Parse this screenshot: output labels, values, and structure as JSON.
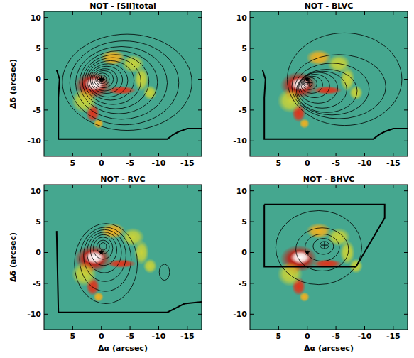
{
  "chart_data": [
    {
      "type": "contour",
      "title": "NOT - [SII]total",
      "y_label": "Δδ (arcsec)",
      "xlim": [
        10,
        -17.5
      ],
      "ylim": [
        -12.5,
        11
      ],
      "xticks": [
        5,
        0,
        -5,
        -10,
        -15
      ],
      "yticks": [
        -10,
        -5,
        0,
        5,
        10
      ],
      "image": [
        {
          "x": 1.5,
          "y": -1.0,
          "rx": 3.2,
          "ry": 2.2,
          "intensity": 0.7
        },
        {
          "x": 1.2,
          "y": -0.8,
          "rx": 1.8,
          "ry": 1.1,
          "intensity": 1
        },
        {
          "x": 2.6,
          "y": -2.6,
          "rx": 1.3,
          "ry": 1.2,
          "intensity": 0.8
        },
        {
          "x": -3.5,
          "y": -1.8,
          "rx": 2.6,
          "ry": 0.7,
          "intensity": 0.6
        },
        {
          "x": 1.5,
          "y": -5.5,
          "rx": 1.2,
          "ry": 1.5,
          "intensity": 0.6
        },
        {
          "x": 0.5,
          "y": -7.2,
          "rx": 0.9,
          "ry": 0.8,
          "intensity": 0.4
        },
        {
          "x": -2.0,
          "y": 3.5,
          "rx": 2.2,
          "ry": 1.3,
          "intensity": 0.35
        },
        {
          "x": -5.5,
          "y": 2.5,
          "rx": 2.0,
          "ry": 1.5,
          "intensity": 0.3
        },
        {
          "x": -7.0,
          "y": 0.0,
          "rx": 1.3,
          "ry": 2.0,
          "intensity": 0.3
        },
        {
          "x": -8.5,
          "y": -2.2,
          "rx": 1.2,
          "ry": 1.2,
          "intensity": 0.25
        },
        {
          "x": 3.0,
          "y": -3.5,
          "rx": 2.2,
          "ry": 2.0,
          "intensity": 0.3
        }
      ],
      "contours": [
        {
          "cx": 0,
          "cy": 0,
          "rx": 0.4,
          "ry": 0.4
        },
        {
          "cx": -0.1,
          "cy": 0,
          "rx": 0.8,
          "ry": 0.7
        },
        {
          "cx": -0.2,
          "cy": 0,
          "rx": 1.2,
          "ry": 1.0
        },
        {
          "cx": -0.4,
          "cy": 0,
          "rx": 1.7,
          "ry": 1.4
        },
        {
          "cx": -0.6,
          "cy": -0.1,
          "rx": 2.2,
          "ry": 1.8
        },
        {
          "cx": -0.9,
          "cy": -0.1,
          "rx": 2.8,
          "ry": 2.2
        },
        {
          "cx": -1.2,
          "cy": -0.2,
          "rx": 3.4,
          "ry": 2.7
        },
        {
          "cx": -1.6,
          "cy": -0.2,
          "rx": 4.1,
          "ry": 3.2
        },
        {
          "cx": -2.0,
          "cy": -0.3,
          "rx": 4.9,
          "ry": 3.8
        },
        {
          "cx": -2.5,
          "cy": -0.4,
          "rx": 5.8,
          "ry": 4.4
        },
        {
          "cx": -3.0,
          "cy": -0.5,
          "rx": 6.8,
          "ry": 5.1
        },
        {
          "cx": -3.5,
          "cy": -0.6,
          "rx": 8.0,
          "ry": 5.9
        },
        {
          "cx": -4.0,
          "cy": -0.6,
          "rx": 9.5,
          "ry": 6.8
        },
        {
          "cx": -4.5,
          "cy": -0.5,
          "rx": 11.3,
          "ry": 7.8
        }
      ],
      "markers": [
        {
          "x": 0,
          "y": 0,
          "marker": "star"
        },
        {
          "x": 0,
          "y": 0,
          "marker": "plus"
        }
      ],
      "coverage": [
        [
          7.8,
          1.5
        ],
        [
          7.3,
          0
        ],
        [
          7.5,
          -3
        ],
        [
          7.5,
          -9.7
        ],
        [
          -11.5,
          -9.7
        ],
        [
          -12.5,
          -9
        ],
        [
          -13.5,
          -8.5
        ],
        [
          -15,
          -8
        ],
        [
          -17.5,
          -8
        ]
      ]
    },
    {
      "type": "contour",
      "title": "NOT - BLVC",
      "xlim": [
        10,
        -17.5
      ],
      "ylim": [
        -12.5,
        11
      ],
      "xticks": [
        5,
        0,
        -5,
        -10,
        -15
      ],
      "yticks": [
        -10,
        -5,
        0,
        5,
        10
      ],
      "image": [
        {
          "x": 1.5,
          "y": -1.0,
          "rx": 3.2,
          "ry": 2.2,
          "intensity": 0.7
        },
        {
          "x": 1.2,
          "y": -0.8,
          "rx": 1.8,
          "ry": 1.1,
          "intensity": 1
        },
        {
          "x": 2.6,
          "y": -2.6,
          "rx": 1.3,
          "ry": 1.2,
          "intensity": 0.8
        },
        {
          "x": -3.5,
          "y": -1.8,
          "rx": 2.6,
          "ry": 0.7,
          "intensity": 0.6
        },
        {
          "x": 1.5,
          "y": -5.5,
          "rx": 1.2,
          "ry": 1.5,
          "intensity": 0.6
        },
        {
          "x": 0.5,
          "y": -7.2,
          "rx": 0.9,
          "ry": 0.8,
          "intensity": 0.4
        },
        {
          "x": -2.0,
          "y": 3.5,
          "rx": 2.2,
          "ry": 1.3,
          "intensity": 0.35
        },
        {
          "x": -5.5,
          "y": 2.5,
          "rx": 2.0,
          "ry": 1.5,
          "intensity": 0.3
        },
        {
          "x": -7.0,
          "y": 0.0,
          "rx": 1.3,
          "ry": 2.0,
          "intensity": 0.3
        },
        {
          "x": -8.5,
          "y": -2.2,
          "rx": 1.2,
          "ry": 1.2,
          "intensity": 0.25
        },
        {
          "x": 3.0,
          "y": -3.5,
          "rx": 2.2,
          "ry": 2.0,
          "intensity": 0.3
        }
      ],
      "contours": [
        {
          "cx": 0.2,
          "cy": -0.5,
          "rx": 0.4,
          "ry": 0.4
        },
        {
          "cx": -0.1,
          "cy": -0.6,
          "rx": 0.8,
          "ry": 0.7
        },
        {
          "cx": -0.4,
          "cy": -0.7,
          "rx": 1.3,
          "ry": 1.0
        },
        {
          "cx": -0.8,
          "cy": -0.9,
          "rx": 1.9,
          "ry": 1.4
        },
        {
          "cx": -1.3,
          "cy": -1.1,
          "rx": 2.6,
          "ry": 1.9
        },
        {
          "cx": -1.9,
          "cy": -1.4,
          "rx": 3.4,
          "ry": 2.5
        },
        {
          "cx": -2.6,
          "cy": -1.7,
          "rx": 4.3,
          "ry": 3.0
        },
        {
          "cx": -3.4,
          "cy": -1.9,
          "rx": 5.3,
          "ry": 3.5
        },
        {
          "cx": -4.3,
          "cy": -1.6,
          "rx": 6.5,
          "ry": 4.2
        },
        {
          "cx": -5.5,
          "cy": -1.2,
          "rx": 8.2,
          "ry": 5.2
        },
        {
          "cx": -6.5,
          "cy": 0,
          "rx": 10,
          "ry": 7.5
        }
      ],
      "markers": [
        {
          "x": 0,
          "y": 0,
          "marker": "star"
        },
        {
          "x": -0.3,
          "y": -0.6,
          "marker": "plus"
        }
      ],
      "coverage": [
        [
          7.8,
          1.5
        ],
        [
          7.3,
          0
        ],
        [
          7.5,
          -3
        ],
        [
          7.5,
          -9.7
        ],
        [
          -11.5,
          -9.7
        ],
        [
          -12.5,
          -9
        ],
        [
          -13.5,
          -8.5
        ],
        [
          -15,
          -8
        ],
        [
          -17.5,
          -8
        ]
      ]
    },
    {
      "type": "contour",
      "title": "NOT - RVC",
      "x_label": "Δα (arcsec)",
      "y_label": "Δδ (arcsec)",
      "xlim": [
        10,
        -17.5
      ],
      "ylim": [
        -12.5,
        11
      ],
      "xticks": [
        5,
        0,
        -5,
        -10,
        -15
      ],
      "yticks": [
        -10,
        -5,
        0,
        5,
        10
      ],
      "image": [
        {
          "x": 1.5,
          "y": -1.0,
          "rx": 3.2,
          "ry": 2.2,
          "intensity": 0.7
        },
        {
          "x": 1.2,
          "y": -0.8,
          "rx": 1.8,
          "ry": 1.1,
          "intensity": 1
        },
        {
          "x": 2.6,
          "y": -2.6,
          "rx": 1.3,
          "ry": 1.2,
          "intensity": 0.8
        },
        {
          "x": -3.5,
          "y": -1.8,
          "rx": 2.6,
          "ry": 0.7,
          "intensity": 0.6
        },
        {
          "x": 1.5,
          "y": -5.5,
          "rx": 1.2,
          "ry": 1.5,
          "intensity": 0.6
        },
        {
          "x": 0.5,
          "y": -7.2,
          "rx": 0.9,
          "ry": 0.8,
          "intensity": 0.4
        },
        {
          "x": -2.0,
          "y": 3.5,
          "rx": 2.2,
          "ry": 1.3,
          "intensity": 0.35
        },
        {
          "x": -5.5,
          "y": 2.5,
          "rx": 2.0,
          "ry": 1.5,
          "intensity": 0.3
        },
        {
          "x": -7.0,
          "y": 0.0,
          "rx": 1.3,
          "ry": 2.0,
          "intensity": 0.3
        },
        {
          "x": -8.5,
          "y": -2.2,
          "rx": 1.2,
          "ry": 1.2,
          "intensity": 0.25
        },
        {
          "x": 3.0,
          "y": -3.5,
          "rx": 2.2,
          "ry": 2.0,
          "intensity": 0.3
        }
      ],
      "contours": [
        {
          "cx": -0.3,
          "cy": 1.0,
          "rx": 0.6,
          "ry": 0.6
        },
        {
          "cx": -0.3,
          "cy": 0.9,
          "rx": 1.1,
          "ry": 1.1
        },
        {
          "cx": -0.3,
          "cy": 0.7,
          "rx": 1.7,
          "ry": 1.8
        },
        {
          "cx": -0.4,
          "cy": 0.4,
          "rx": 2.3,
          "ry": 2.5
        },
        {
          "cx": -0.5,
          "cy": 0,
          "rx": 3.0,
          "ry": 3.3
        },
        {
          "cx": -0.6,
          "cy": -0.5,
          "rx": 3.7,
          "ry": 4.2
        },
        {
          "cx": -0.7,
          "cy": -1.1,
          "rx": 4.5,
          "ry": 5.2
        },
        {
          "cx": -0.8,
          "cy": -1.8,
          "rx": 5.5,
          "ry": 6.5
        },
        {
          "cx": -11,
          "cy": -3.2,
          "rx": 0.9,
          "ry": 1.3
        }
      ],
      "markers": [
        {
          "x": 0,
          "y": 0,
          "marker": "star"
        }
      ],
      "coverage": [
        [
          7.8,
          3.5
        ],
        [
          7.5,
          -9.7
        ],
        [
          -11.5,
          -9.7
        ],
        [
          -13,
          -9
        ],
        [
          -14.5,
          -8.3
        ],
        [
          -17.5,
          -8
        ]
      ]
    },
    {
      "type": "contour",
      "title": "NOT - BHVC",
      "x_label": "Δα (arcsec)",
      "xlim": [
        10,
        -17.5
      ],
      "ylim": [
        -12.5,
        11
      ],
      "xticks": [
        5,
        0,
        -5,
        -10,
        -15
      ],
      "yticks": [
        -10,
        -5,
        0,
        5,
        10
      ],
      "image": [
        {
          "x": 1.5,
          "y": -1.0,
          "rx": 3.2,
          "ry": 2.2,
          "intensity": 0.7
        },
        {
          "x": 1.2,
          "y": -0.8,
          "rx": 1.8,
          "ry": 1.1,
          "intensity": 1
        },
        {
          "x": 2.6,
          "y": -2.6,
          "rx": 1.3,
          "ry": 1.2,
          "intensity": 0.8
        },
        {
          "x": -3.5,
          "y": -1.8,
          "rx": 2.6,
          "ry": 0.7,
          "intensity": 0.6
        },
        {
          "x": 1.5,
          "y": -5.5,
          "rx": 1.2,
          "ry": 1.5,
          "intensity": 0.6
        },
        {
          "x": 0.5,
          "y": -7.2,
          "rx": 0.9,
          "ry": 0.8,
          "intensity": 0.4
        },
        {
          "x": -2.0,
          "y": 3.5,
          "rx": 2.2,
          "ry": 1.3,
          "intensity": 0.35
        },
        {
          "x": -5.5,
          "y": 2.5,
          "rx": 2.0,
          "ry": 1.5,
          "intensity": 0.3
        },
        {
          "x": -7.0,
          "y": 0.0,
          "rx": 1.3,
          "ry": 2.0,
          "intensity": 0.3
        },
        {
          "x": -8.5,
          "y": -2.2,
          "rx": 1.2,
          "ry": 1.2,
          "intensity": 0.25
        },
        {
          "x": 3.0,
          "y": -3.5,
          "rx": 2.2,
          "ry": 2.0,
          "intensity": 0.3
        }
      ],
      "contours": [
        {
          "cx": -3,
          "cy": 1.2,
          "rx": 0.8,
          "ry": 0.6
        },
        {
          "cx": -2.8,
          "cy": 1.0,
          "rx": 1.8,
          "ry": 1.3
        },
        {
          "cx": -2.6,
          "cy": 0.8,
          "rx": 3.0,
          "ry": 2.2
        },
        {
          "cx": -2.6,
          "cy": 0.5,
          "rx": 4.6,
          "ry": 3.5
        },
        {
          "cx": -2.0,
          "cy": 0.8,
          "rx": 7.5,
          "ry": 6.0
        }
      ],
      "markers": [
        {
          "x": 0,
          "y": 0,
          "marker": "star"
        },
        {
          "x": -3,
          "y": 1.2,
          "marker": "plus"
        }
      ],
      "coverage": [
        [
          7.5,
          7.8
        ],
        [
          -13.5,
          7.8
        ],
        [
          -13.5,
          5.6
        ],
        [
          -8.5,
          -2.3
        ],
        [
          7.5,
          -2.3
        ],
        [
          7.5,
          7.8
        ]
      ]
    }
  ]
}
